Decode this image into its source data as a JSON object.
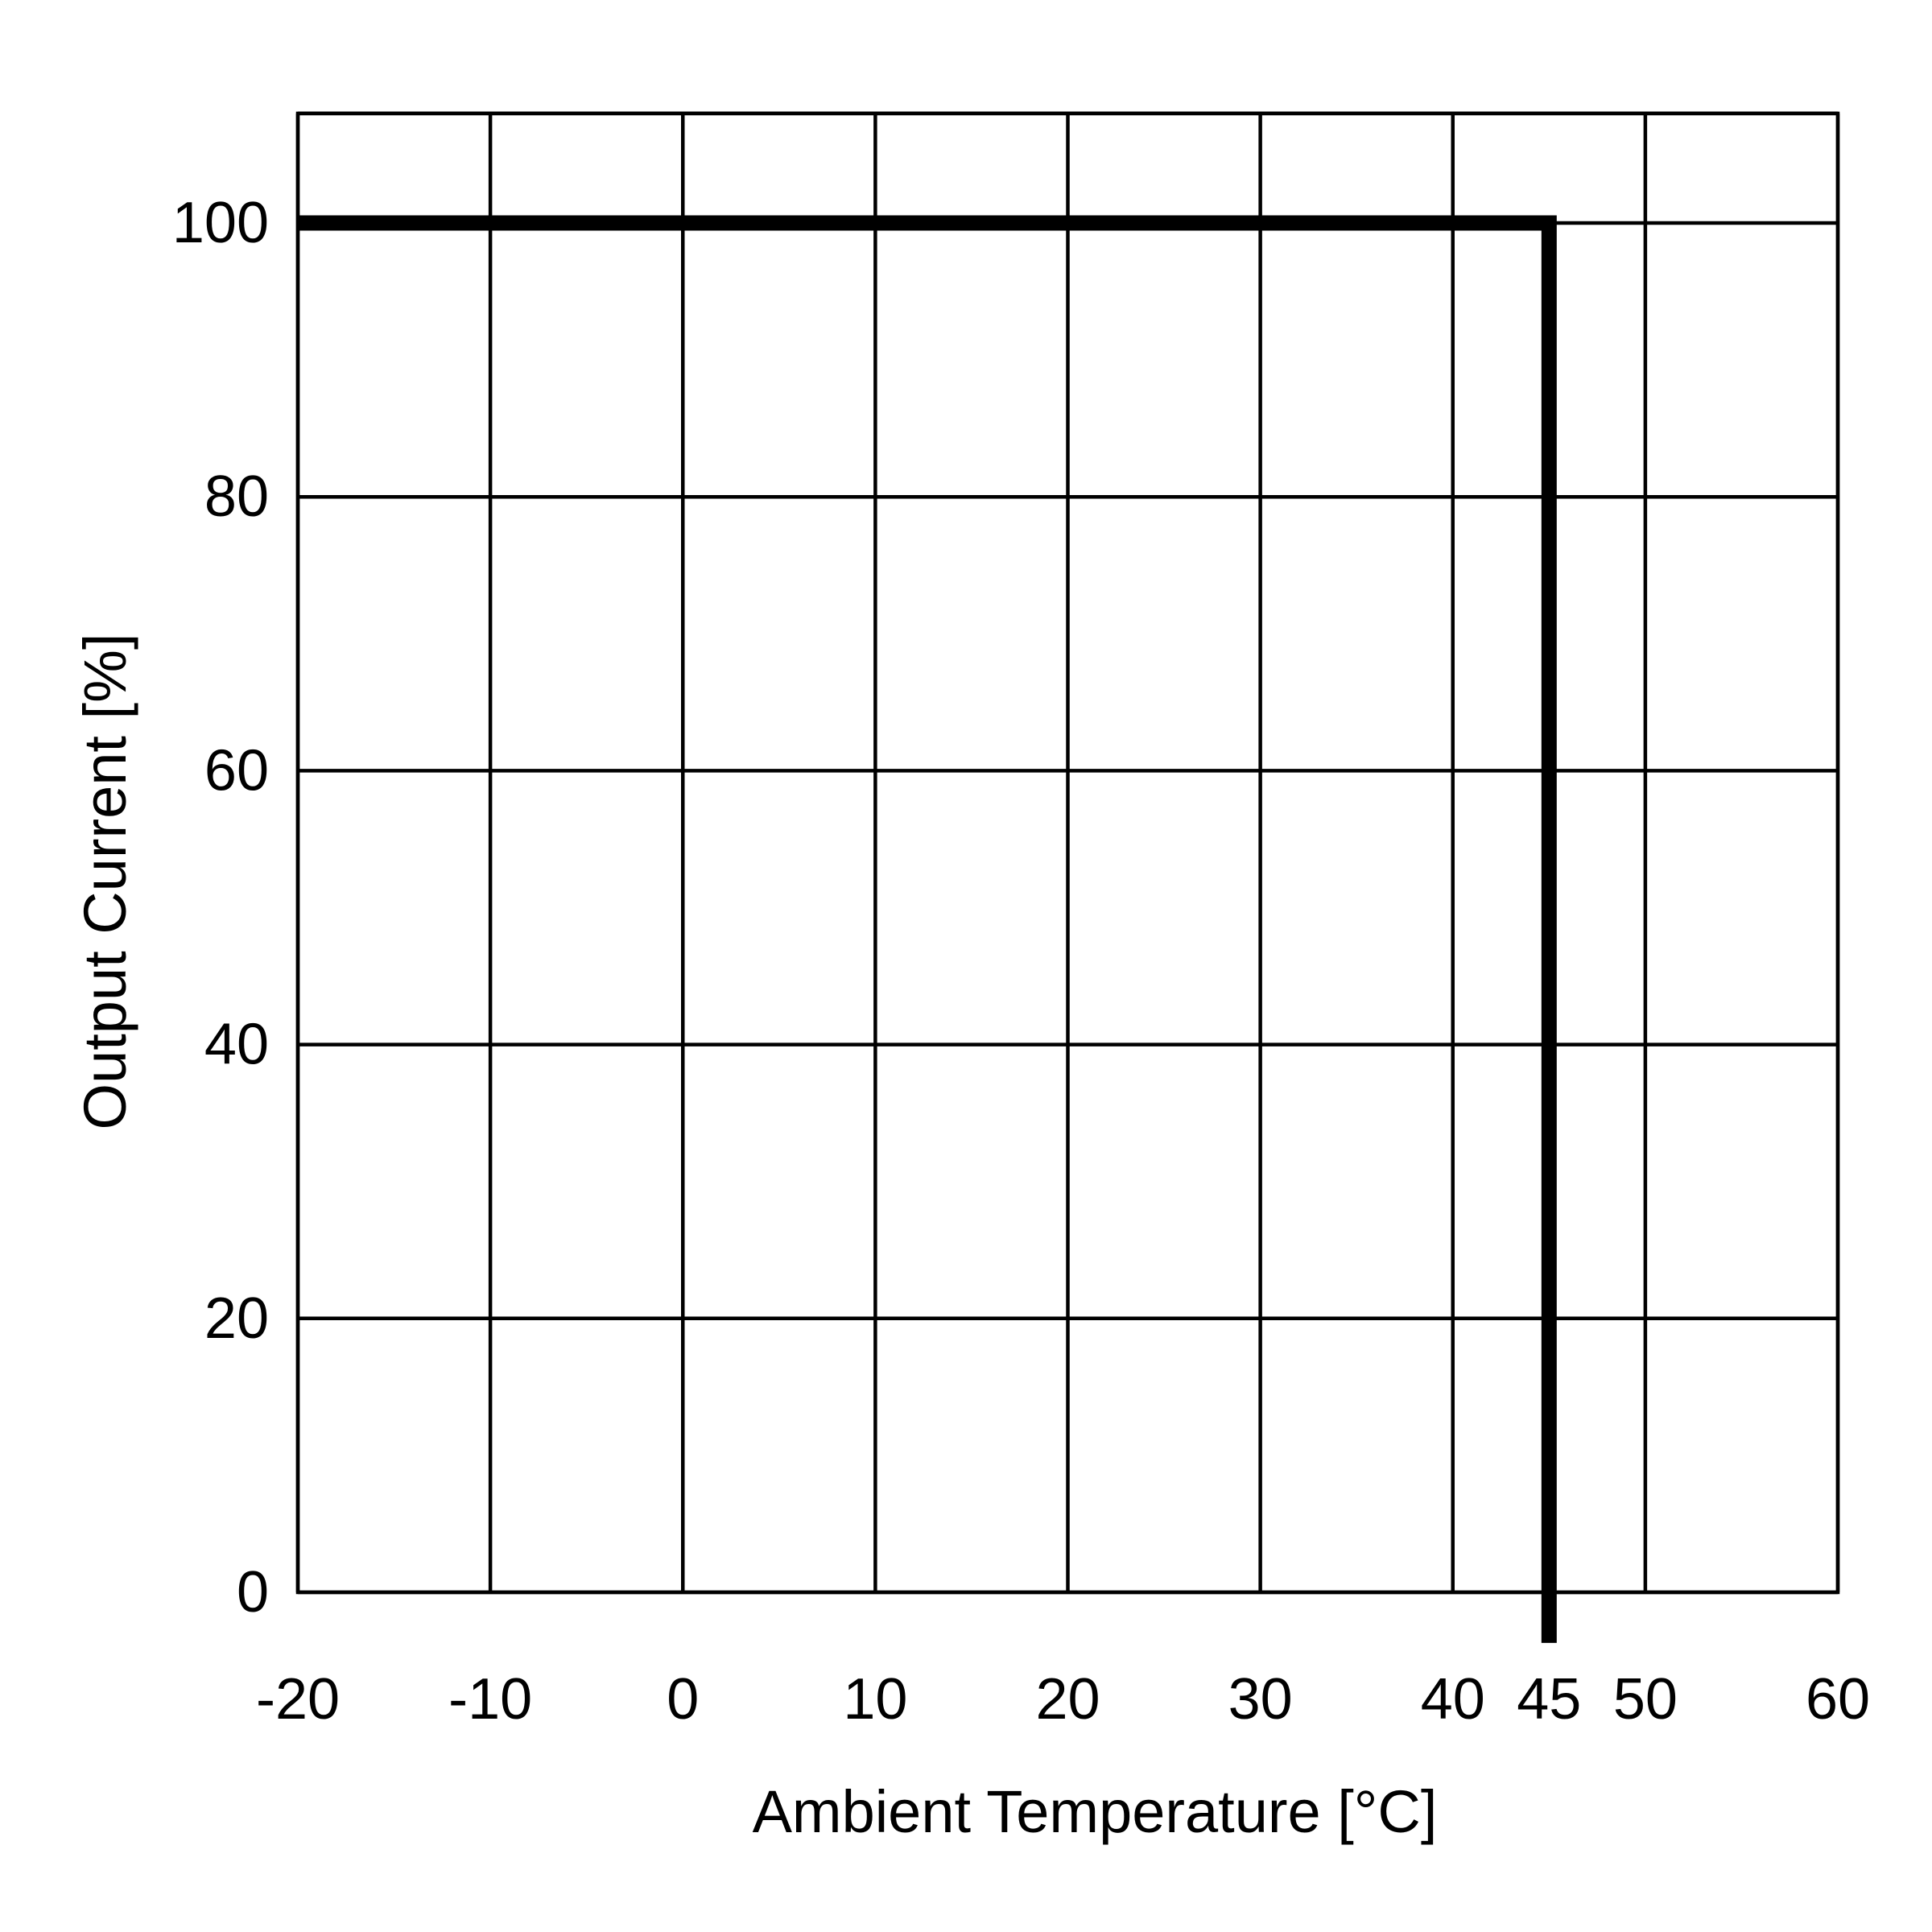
{
  "chart_data": {
    "type": "line",
    "title": "",
    "xlabel": "Ambient Temperature [°C]",
    "ylabel": "Output Current [%]",
    "xlim": [
      -20,
      60
    ],
    "ylim": [
      0,
      100
    ],
    "x_ticks": [
      -20,
      -10,
      0,
      10,
      20,
      30,
      40,
      45,
      50,
      60
    ],
    "y_ticks": [
      0,
      20,
      40,
      60,
      80,
      100
    ],
    "x_gridlines": [
      -20,
      -10,
      0,
      10,
      20,
      30,
      40,
      50,
      60
    ],
    "y_gridlines": [
      0,
      20,
      40,
      60,
      80,
      100,
      108
    ],
    "grid": true,
    "legend": "none",
    "series": [
      {
        "color": "#000000",
        "points": [
          {
            "x": -20,
            "y": 100
          },
          {
            "x": 45,
            "y": 100
          },
          {
            "x": 45,
            "y": -3.7
          }
        ]
      }
    ]
  }
}
